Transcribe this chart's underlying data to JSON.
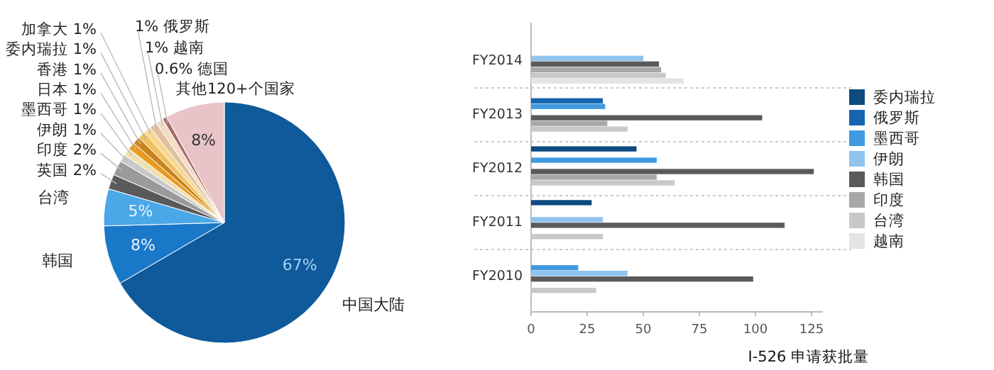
{
  "chart_data": [
    {
      "type": "pie",
      "categories": [
        "中国大陆",
        "韩国",
        "台湾",
        "英国",
        "印度",
        "伊朗",
        "墨西哥",
        "日本",
        "香港",
        "委内瑞拉",
        "加拿大",
        "俄罗斯",
        "越南",
        "德国",
        "其他120+个国家"
      ],
      "values": [
        67,
        8,
        5,
        2,
        2,
        1,
        1,
        1,
        1,
        1,
        1,
        1,
        1,
        0.6,
        8
      ],
      "value_labels": [
        "67%",
        "8%",
        "5%",
        "2%",
        "2%",
        "1%",
        "1%",
        "1%",
        "1%",
        "1%",
        "1%",
        "1%",
        "1%",
        "0.6%",
        "8%"
      ],
      "colors": [
        "#0f5a9a",
        "#1a78c8",
        "#4aa8e8",
        "#5a5a5a",
        "#9a9a9a",
        "#c8c8c8",
        "#f0e0b0",
        "#e89a20",
        "#c8841c",
        "#f0c060",
        "#f5d890",
        "#e0c0a0",
        "#f3dcc4",
        "#a86868",
        "#e8c4c8"
      ]
    },
    {
      "type": "bar",
      "orientation": "horizontal",
      "categories": [
        "FY2014",
        "FY2013",
        "FY2012",
        "FY2011",
        "FY2010"
      ],
      "xlabel": "I-526 申请获批量",
      "xlim": [
        0,
        130
      ],
      "xticks": [
        0,
        25,
        50,
        75,
        100,
        125
      ],
      "grid": "y",
      "legend": "right",
      "series": [
        {
          "name": "委内瑞拉",
          "color": "#0d4a80",
          "values": [
            null,
            null,
            47,
            27,
            null
          ]
        },
        {
          "name": "俄罗斯",
          "color": "#1565b0",
          "values": [
            null,
            32,
            null,
            null,
            null
          ]
        },
        {
          "name": "墨西哥",
          "color": "#3f9ae0",
          "values": [
            null,
            33,
            56,
            null,
            21
          ]
        },
        {
          "name": "伊朗",
          "color": "#8ec4ee",
          "values": [
            50,
            null,
            null,
            32,
            43
          ]
        },
        {
          "name": "韩国",
          "color": "#5a5a5a",
          "values": [
            57,
            103,
            126,
            113,
            99
          ]
        },
        {
          "name": "印度",
          "color": "#a8a8a8",
          "values": [
            58,
            34,
            56,
            null,
            null
          ]
        },
        {
          "name": "台湾",
          "color": "#c8c8c8",
          "values": [
            60,
            43,
            64,
            32,
            29
          ]
        },
        {
          "name": "越南",
          "color": "#e4e4e4",
          "values": [
            68,
            null,
            null,
            null,
            null
          ]
        }
      ]
    }
  ]
}
